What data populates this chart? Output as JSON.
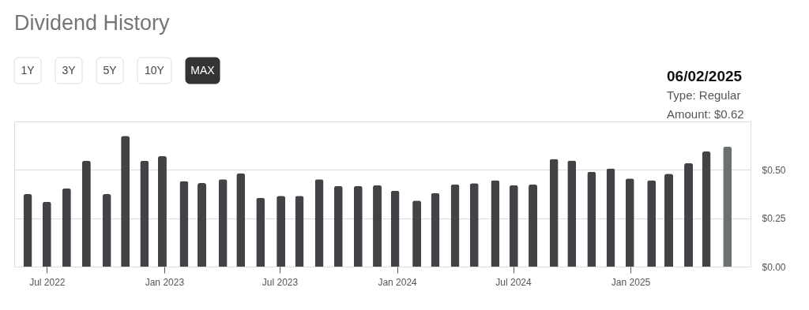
{
  "chart_data": {
    "type": "bar",
    "title": "Dividend History",
    "x": [
      "2022-06-01",
      "2022-07-01",
      "2022-08-01",
      "2022-09-01",
      "2022-10-03",
      "2022-11-01",
      "2022-12-01",
      "2022-12-29",
      "2023-02-01",
      "2023-03-01",
      "2023-04-03",
      "2023-05-01",
      "2023-06-01",
      "2023-07-03",
      "2023-08-01",
      "2023-09-01",
      "2023-10-01",
      "2023-11-01",
      "2023-12-01",
      "2023-12-29",
      "2024-02-01",
      "2024-03-01",
      "2024-04-01",
      "2024-05-01",
      "2024-06-03",
      "2024-07-02",
      "2024-08-01",
      "2024-09-03",
      "2024-10-01",
      "2024-11-01",
      "2024-12-01",
      "2024-12-31",
      "2025-02-03",
      "2025-03-02",
      "2025-04-02",
      "2025-04-30",
      "2025-06-02"
    ],
    "values": [
      0.375,
      0.335,
      0.405,
      0.547,
      0.375,
      0.676,
      0.547,
      0.572,
      0.442,
      0.432,
      0.451,
      0.482,
      0.356,
      0.366,
      0.366,
      0.451,
      0.416,
      0.416,
      0.421,
      0.392,
      0.341,
      0.38,
      0.425,
      0.431,
      0.446,
      0.421,
      0.425,
      0.556,
      0.548,
      0.49,
      0.507,
      0.455,
      0.446,
      0.48,
      0.535,
      0.595,
      0.62
    ],
    "colors": [
      "#434347",
      "#434347",
      "#434347",
      "#434347",
      "#434347",
      "#434347",
      "#434347",
      "#434347",
      "#434347",
      "#434347",
      "#434347",
      "#434347",
      "#434347",
      "#434347",
      "#434347",
      "#434347",
      "#434347",
      "#434347",
      "#434347",
      "#434347",
      "#434347",
      "#434347",
      "#434347",
      "#434347",
      "#434347",
      "#434347",
      "#434347",
      "#434347",
      "#434347",
      "#434347",
      "#434347",
      "#434347",
      "#434347",
      "#434347",
      "#434347",
      "#434347",
      "#6b7070"
    ],
    "xlim": [
      "2022-05-17",
      "2025-07-02"
    ],
    "xticks": [
      {
        "value": "2022-07-01",
        "label": "Jul 2022"
      },
      {
        "value": "2023-01-01",
        "label": "Jan 2023"
      },
      {
        "value": "2023-07-01",
        "label": "Jul 2023"
      },
      {
        "value": "2024-01-01",
        "label": "Jan 2024"
      },
      {
        "value": "2024-07-01",
        "label": "Jul 2024"
      },
      {
        "value": "2025-01-01",
        "label": "Jan 2025"
      }
    ],
    "ylim": [
      0,
      0.75
    ],
    "yticks": [
      {
        "value": 0,
        "label": "$0.00"
      },
      {
        "value": 0.25,
        "label": "$0.25"
      },
      {
        "value": 0.5,
        "label": "$0.50"
      },
      {
        "value": 0.75,
        "label": null
      }
    ],
    "grid": "y",
    "legend": false,
    "annotations": [
      "1Y",
      "3Y",
      "5Y",
      "10Y",
      "MAX",
      "06/02/2025",
      "Type: Regular",
      "Amount: $0.62"
    ]
  }
}
